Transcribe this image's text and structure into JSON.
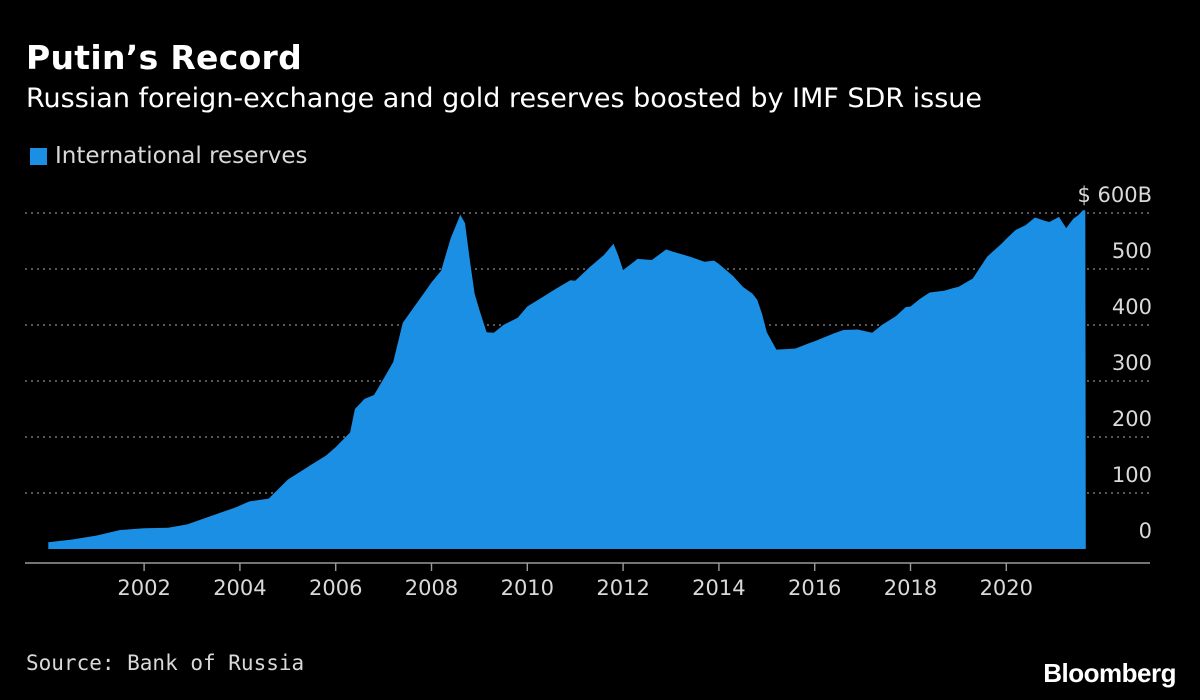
{
  "title": "Putin’s Record",
  "subtitle": "Russian foreign-exchange and gold reserves boosted by IMF SDR issue",
  "legend": {
    "label": "International reserves",
    "color": "#1a8fe3"
  },
  "source": "Source: Bank of Russia",
  "brand": "Bloomberg",
  "chart_data": {
    "type": "area",
    "title": "Putin’s Record",
    "subtitle": "Russian foreign-exchange and gold reserves boosted by IMF SDR issue",
    "series": [
      {
        "name": "International reserves",
        "color": "#1a8fe3",
        "points": [
          [
            2000.0,
            12
          ],
          [
            2000.5,
            17
          ],
          [
            2001.0,
            24
          ],
          [
            2001.5,
            34
          ],
          [
            2002.0,
            37
          ],
          [
            2002.5,
            38
          ],
          [
            2002.9,
            44
          ],
          [
            2003.5,
            62
          ],
          [
            2003.9,
            74
          ],
          [
            2004.2,
            85
          ],
          [
            2004.6,
            90
          ],
          [
            2005.0,
            124
          ],
          [
            2005.5,
            151
          ],
          [
            2005.8,
            167
          ],
          [
            2006.0,
            182
          ],
          [
            2006.3,
            208
          ],
          [
            2006.4,
            250
          ],
          [
            2006.6,
            268
          ],
          [
            2006.8,
            275
          ],
          [
            2007.0,
            304
          ],
          [
            2007.2,
            334
          ],
          [
            2007.4,
            404
          ],
          [
            2007.6,
            428
          ],
          [
            2007.9,
            464
          ],
          [
            2008.0,
            476
          ],
          [
            2008.2,
            497
          ],
          [
            2008.4,
            555
          ],
          [
            2008.6,
            597
          ],
          [
            2008.7,
            582
          ],
          [
            2008.8,
            516
          ],
          [
            2008.9,
            456
          ],
          [
            2009.0,
            427
          ],
          [
            2009.15,
            387
          ],
          [
            2009.3,
            386
          ],
          [
            2009.5,
            400
          ],
          [
            2009.8,
            413
          ],
          [
            2010.0,
            433
          ],
          [
            2010.3,
            449
          ],
          [
            2010.6,
            465
          ],
          [
            2010.9,
            480
          ],
          [
            2011.0,
            479
          ],
          [
            2011.3,
            503
          ],
          [
            2011.6,
            525
          ],
          [
            2011.8,
            545
          ],
          [
            2011.9,
            524
          ],
          [
            2012.0,
            498
          ],
          [
            2012.3,
            518
          ],
          [
            2012.6,
            516
          ],
          [
            2012.9,
            535
          ],
          [
            2013.0,
            532
          ],
          [
            2013.4,
            522
          ],
          [
            2013.7,
            513
          ],
          [
            2013.9,
            515
          ],
          [
            2014.0,
            509
          ],
          [
            2014.3,
            487
          ],
          [
            2014.5,
            468
          ],
          [
            2014.7,
            456
          ],
          [
            2014.8,
            445
          ],
          [
            2014.9,
            420
          ],
          [
            2015.0,
            387
          ],
          [
            2015.2,
            356
          ],
          [
            2015.4,
            357
          ],
          [
            2015.6,
            358
          ],
          [
            2015.9,
            368
          ],
          [
            2016.0,
            371
          ],
          [
            2016.4,
            385
          ],
          [
            2016.6,
            391
          ],
          [
            2016.9,
            392
          ],
          [
            2017.0,
            390
          ],
          [
            2017.2,
            386
          ],
          [
            2017.4,
            400
          ],
          [
            2017.7,
            416
          ],
          [
            2017.9,
            432
          ],
          [
            2018.0,
            433
          ],
          [
            2018.2,
            447
          ],
          [
            2018.4,
            458
          ],
          [
            2018.7,
            461
          ],
          [
            2018.9,
            466
          ],
          [
            2019.0,
            468
          ],
          [
            2019.3,
            483
          ],
          [
            2019.6,
            522
          ],
          [
            2019.9,
            545
          ],
          [
            2020.0,
            554
          ],
          [
            2020.2,
            570
          ],
          [
            2020.4,
            578
          ],
          [
            2020.6,
            592
          ],
          [
            2020.8,
            586
          ],
          [
            2020.9,
            584
          ],
          [
            2021.1,
            593
          ],
          [
            2021.25,
            573
          ],
          [
            2021.4,
            590
          ],
          [
            2021.5,
            596
          ],
          [
            2021.6,
            605
          ],
          [
            2021.65,
            605
          ],
          [
            2021.66,
            0
          ]
        ]
      }
    ],
    "x_ticks": [
      "2002",
      "2004",
      "2006",
      "2008",
      "2010",
      "2012",
      "2014",
      "2016",
      "2018",
      "2020"
    ],
    "x_tick_values": [
      2002,
      2004,
      2006,
      2008,
      2010,
      2012,
      2014,
      2016,
      2018,
      2020
    ],
    "y_ticks": [
      "$ 600B",
      "500",
      "400",
      "300",
      "200",
      "100",
      "0"
    ],
    "y_tick_values": [
      600,
      500,
      400,
      300,
      200,
      100,
      0
    ],
    "xlim": [
      1999.2,
      2023.0
    ],
    "ylim": [
      -25,
      600
    ],
    "grid": true,
    "legend_position": "top-left"
  }
}
